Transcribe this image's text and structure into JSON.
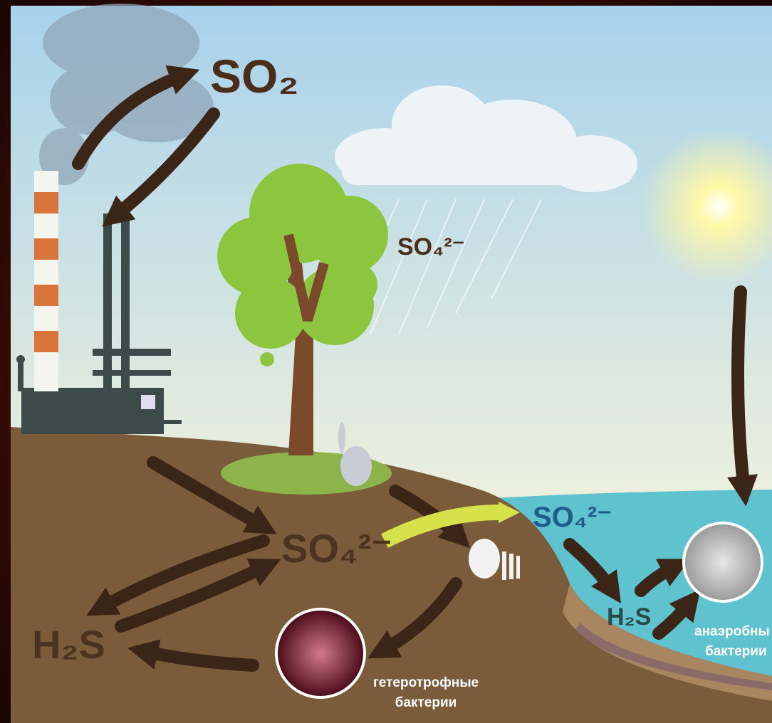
{
  "atmosphere": {
    "sulfur_dioxide": "SO₂"
  },
  "rain": {
    "sulfate": "SO₄²⁻"
  },
  "soil": {
    "sulfate": "SO₄²⁻",
    "hydrogen_sulfide": "H₂S",
    "bacteria": [
      "гетеротрофные",
      "бактерии"
    ]
  },
  "water": {
    "sulfate": "SO₄²⁻",
    "hydrogen_sulfide": "H₂S",
    "bacteria": [
      "анаэробны",
      "бактерии"
    ]
  }
}
